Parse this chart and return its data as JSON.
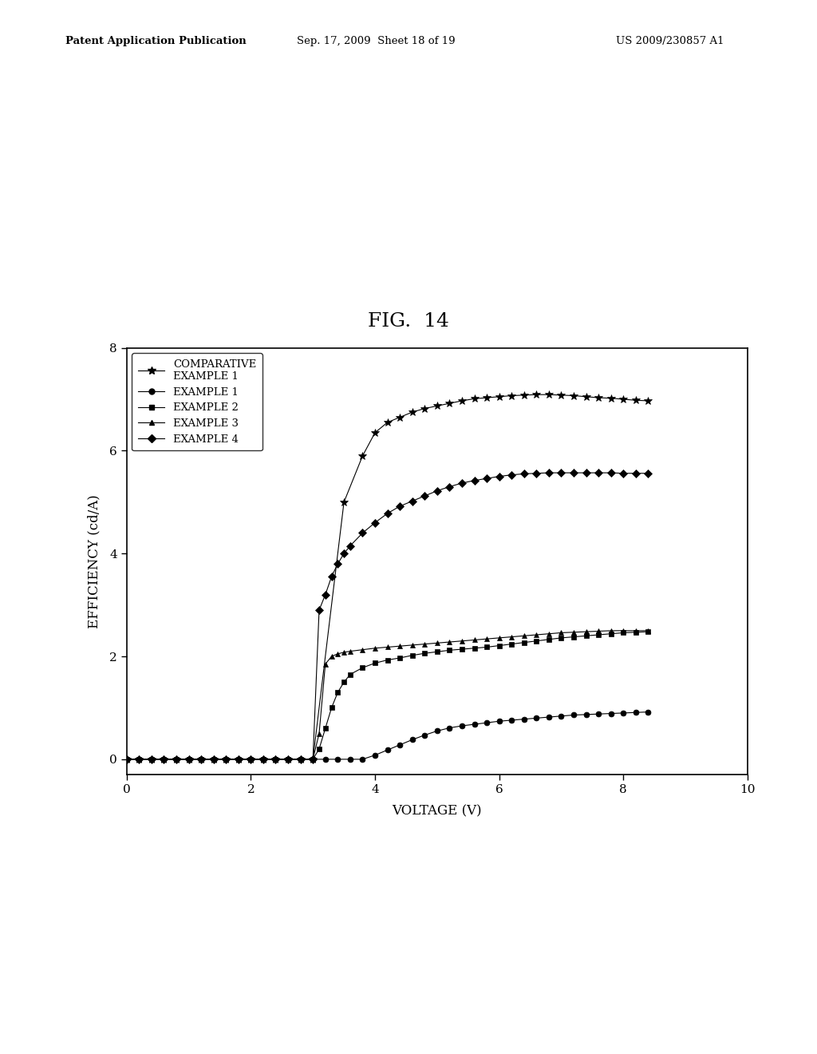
{
  "title": "FIG.  14",
  "xlabel": "VOLTAGE (V)",
  "ylabel": "EFFICIENCY (cd/A)",
  "xlim": [
    0,
    10
  ],
  "ylim": [
    -0.3,
    8
  ],
  "yticks": [
    0,
    2,
    4,
    6,
    8
  ],
  "xticks": [
    0,
    2,
    4,
    6,
    8,
    10
  ],
  "background_color": "#ffffff",
  "header_line1": "Patent Application Publication",
  "header_line2": "Sep. 17, 2009  Sheet 18 of 19",
  "header_line3": "US 2009/230857 A1",
  "series": [
    {
      "label": "COMPARATIVE\nEXAMPLE 1",
      "color": "#000000",
      "marker": "*",
      "markersize": 7,
      "linewidth": 0.8,
      "x": [
        0.0,
        0.2,
        0.4,
        0.6,
        0.8,
        1.0,
        1.2,
        1.4,
        1.6,
        1.8,
        2.0,
        2.2,
        2.4,
        2.6,
        2.8,
        3.0,
        3.5,
        3.8,
        4.0,
        4.2,
        4.4,
        4.6,
        4.8,
        5.0,
        5.2,
        5.4,
        5.6,
        5.8,
        6.0,
        6.2,
        6.4,
        6.6,
        6.8,
        7.0,
        7.2,
        7.4,
        7.6,
        7.8,
        8.0,
        8.2,
        8.4
      ],
      "y": [
        0.0,
        0.0,
        0.0,
        0.0,
        0.0,
        0.0,
        0.0,
        0.0,
        0.0,
        0.0,
        0.0,
        0.0,
        0.0,
        0.0,
        0.0,
        0.0,
        5.0,
        5.9,
        6.35,
        6.55,
        6.65,
        6.75,
        6.82,
        6.87,
        6.92,
        6.97,
        7.01,
        7.03,
        7.05,
        7.07,
        7.08,
        7.09,
        7.09,
        7.08,
        7.07,
        7.05,
        7.03,
        7.02,
        7.0,
        6.98,
        6.97
      ]
    },
    {
      "label": "EXAMPLE 1",
      "color": "#000000",
      "marker": "o",
      "markersize": 5,
      "linewidth": 0.8,
      "x": [
        0.0,
        0.2,
        0.4,
        0.6,
        0.8,
        1.0,
        1.2,
        1.4,
        1.6,
        1.8,
        2.0,
        2.2,
        2.4,
        2.6,
        2.8,
        3.0,
        3.2,
        3.4,
        3.6,
        3.8,
        4.0,
        4.2,
        4.4,
        4.6,
        4.8,
        5.0,
        5.2,
        5.4,
        5.6,
        5.8,
        6.0,
        6.2,
        6.4,
        6.6,
        6.8,
        7.0,
        7.2,
        7.4,
        7.6,
        7.8,
        8.0,
        8.2,
        8.4
      ],
      "y": [
        0.0,
        0.0,
        0.0,
        0.0,
        0.0,
        0.0,
        0.0,
        0.0,
        0.0,
        0.0,
        0.0,
        0.0,
        0.0,
        0.0,
        0.0,
        0.0,
        0.0,
        0.0,
        0.0,
        0.0,
        0.08,
        0.18,
        0.28,
        0.38,
        0.47,
        0.55,
        0.61,
        0.65,
        0.68,
        0.71,
        0.74,
        0.76,
        0.78,
        0.8,
        0.82,
        0.84,
        0.86,
        0.87,
        0.88,
        0.89,
        0.9,
        0.91,
        0.92
      ]
    },
    {
      "label": "EXAMPLE 2",
      "color": "#000000",
      "marker": "s",
      "markersize": 5,
      "linewidth": 0.8,
      "x": [
        0.0,
        0.2,
        0.4,
        0.6,
        0.8,
        1.0,
        1.2,
        1.4,
        1.6,
        1.8,
        2.0,
        2.2,
        2.4,
        2.6,
        2.8,
        3.0,
        3.1,
        3.2,
        3.3,
        3.4,
        3.5,
        3.6,
        3.8,
        4.0,
        4.2,
        4.4,
        4.6,
        4.8,
        5.0,
        5.2,
        5.4,
        5.6,
        5.8,
        6.0,
        6.2,
        6.4,
        6.6,
        6.8,
        7.0,
        7.2,
        7.4,
        7.6,
        7.8,
        8.0,
        8.2,
        8.4
      ],
      "y": [
        0.0,
        0.0,
        0.0,
        0.0,
        0.0,
        0.0,
        0.0,
        0.0,
        0.0,
        0.0,
        0.0,
        0.0,
        0.0,
        0.0,
        0.0,
        0.0,
        0.2,
        0.6,
        1.0,
        1.3,
        1.5,
        1.65,
        1.78,
        1.87,
        1.93,
        1.97,
        2.02,
        2.06,
        2.09,
        2.12,
        2.14,
        2.16,
        2.18,
        2.21,
        2.24,
        2.27,
        2.3,
        2.33,
        2.36,
        2.38,
        2.4,
        2.42,
        2.44,
        2.46,
        2.47,
        2.48
      ]
    },
    {
      "label": "EXAMPLE 3",
      "color": "#000000",
      "marker": "^",
      "markersize": 5,
      "linewidth": 0.8,
      "x": [
        0.0,
        0.2,
        0.4,
        0.6,
        0.8,
        1.0,
        1.2,
        1.4,
        1.6,
        1.8,
        2.0,
        2.2,
        2.4,
        2.6,
        2.8,
        3.0,
        3.1,
        3.2,
        3.3,
        3.4,
        3.5,
        3.6,
        3.8,
        4.0,
        4.2,
        4.4,
        4.6,
        4.8,
        5.0,
        5.2,
        5.4,
        5.6,
        5.8,
        6.0,
        6.2,
        6.4,
        6.6,
        6.8,
        7.0,
        7.2,
        7.4,
        7.6,
        7.8,
        8.0,
        8.2,
        8.4
      ],
      "y": [
        0.0,
        0.0,
        0.0,
        0.0,
        0.0,
        0.0,
        0.0,
        0.0,
        0.0,
        0.0,
        0.0,
        0.0,
        0.0,
        0.0,
        0.0,
        0.0,
        0.5,
        1.85,
        2.0,
        2.05,
        2.08,
        2.1,
        2.13,
        2.16,
        2.18,
        2.2,
        2.22,
        2.24,
        2.26,
        2.28,
        2.3,
        2.32,
        2.34,
        2.36,
        2.38,
        2.4,
        2.42,
        2.44,
        2.46,
        2.47,
        2.48,
        2.49,
        2.5,
        2.5,
        2.5,
        2.5
      ]
    },
    {
      "label": "EXAMPLE 4",
      "color": "#000000",
      "marker": "D",
      "markersize": 5,
      "linewidth": 0.8,
      "x": [
        0.0,
        0.2,
        0.4,
        0.6,
        0.8,
        1.0,
        1.2,
        1.4,
        1.6,
        1.8,
        2.0,
        2.2,
        2.4,
        2.6,
        2.8,
        3.0,
        3.1,
        3.2,
        3.3,
        3.4,
        3.5,
        3.6,
        3.8,
        4.0,
        4.2,
        4.4,
        4.6,
        4.8,
        5.0,
        5.2,
        5.4,
        5.6,
        5.8,
        6.0,
        6.2,
        6.4,
        6.6,
        6.8,
        7.0,
        7.2,
        7.4,
        7.6,
        7.8,
        8.0,
        8.2,
        8.4
      ],
      "y": [
        0.0,
        0.0,
        0.0,
        0.0,
        0.0,
        0.0,
        0.0,
        0.0,
        0.0,
        0.0,
        0.0,
        0.0,
        0.0,
        0.0,
        0.0,
        0.0,
        2.9,
        3.2,
        3.55,
        3.8,
        4.0,
        4.15,
        4.4,
        4.6,
        4.78,
        4.92,
        5.02,
        5.12,
        5.22,
        5.3,
        5.37,
        5.42,
        5.46,
        5.5,
        5.53,
        5.55,
        5.56,
        5.57,
        5.57,
        5.57,
        5.57,
        5.57,
        5.57,
        5.56,
        5.56,
        5.56
      ]
    }
  ]
}
